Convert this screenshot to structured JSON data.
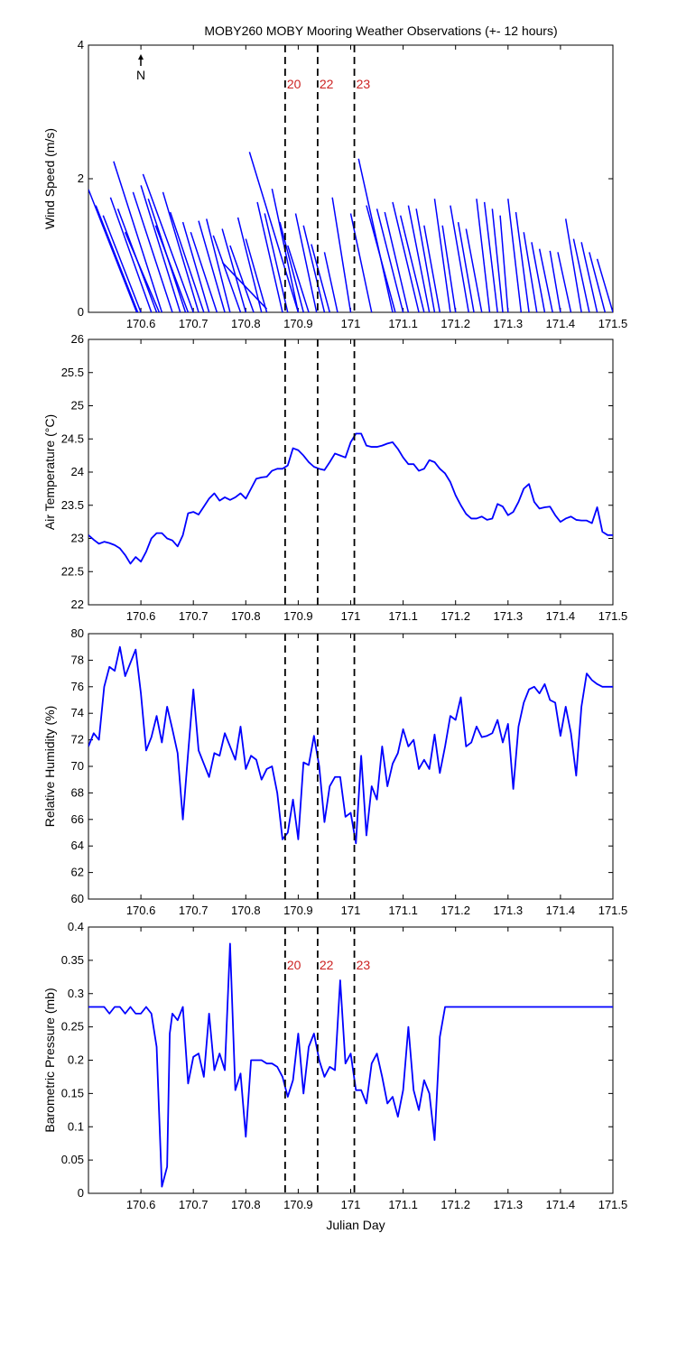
{
  "figure_title": "MOBY260 MOBY Mooring Weather Observations (+- 12 hours)",
  "xlabel_bottom": "Julian Day",
  "north_label": "N",
  "event_labels": [
    "20",
    "22",
    "23"
  ],
  "colors": {
    "series": "#0000ff",
    "event_line": "#000000",
    "event_label": "#cc2222",
    "axes": "#000000"
  },
  "chart_data": [
    {
      "id": "wind",
      "type": "line",
      "ylabel": "Wind Speed (m/s)",
      "xlim": [
        170.5,
        171.5
      ],
      "ylim": [
        0,
        4
      ],
      "xticks": [
        170.6,
        170.7,
        170.8,
        170.9,
        171,
        171.1,
        171.2,
        171.3,
        171.4,
        171.5
      ],
      "xtick_labels": [
        "170.6",
        "170.7",
        "170.8",
        "170.9",
        "171",
        "171.1",
        "171.2",
        "171.3",
        "171.4",
        "171.5"
      ],
      "yticks": [
        0,
        2,
        4
      ],
      "ytick_labels": [
        "0",
        "2",
        "4"
      ],
      "event_x": [
        170.875,
        170.937,
        171.007
      ],
      "stick_vectors": [
        [
          170.5,
          1.84,
          170.592,
          0
        ],
        [
          170.514,
          1.6,
          170.594,
          0
        ],
        [
          170.528,
          1.45,
          170.6,
          0
        ],
        [
          170.542,
          1.72,
          170.62,
          0
        ],
        [
          170.556,
          1.55,
          170.63,
          0
        ],
        [
          170.57,
          1.2,
          170.635,
          0
        ],
        [
          170.548,
          2.26,
          170.64,
          0
        ],
        [
          170.585,
          1.8,
          170.66,
          0
        ],
        [
          170.6,
          1.9,
          170.675,
          0
        ],
        [
          170.614,
          1.7,
          170.685,
          0
        ],
        [
          170.628,
          1.3,
          170.69,
          0
        ],
        [
          170.604,
          2.07,
          170.7,
          0
        ],
        [
          170.642,
          1.8,
          170.71,
          0
        ],
        [
          170.656,
          1.5,
          170.72,
          0
        ],
        [
          170.68,
          1.35,
          170.73,
          0
        ],
        [
          170.695,
          1.2,
          170.745,
          0
        ],
        [
          170.71,
          1.37,
          170.76,
          0
        ],
        [
          170.725,
          1.4,
          170.77,
          0
        ],
        [
          170.738,
          1.15,
          170.79,
          0
        ],
        [
          170.755,
          1.25,
          170.8,
          0
        ],
        [
          170.77,
          1.0,
          170.815,
          0
        ],
        [
          170.785,
          1.42,
          170.83,
          0
        ],
        [
          170.8,
          1.1,
          170.84,
          0
        ],
        [
          170.755,
          0.75,
          170.84,
          0.05
        ],
        [
          170.822,
          1.65,
          170.87,
          0
        ],
        [
          170.836,
          1.48,
          170.88,
          0
        ],
        [
          170.807,
          2.4,
          170.9,
          0
        ],
        [
          170.85,
          1.85,
          170.9,
          0
        ],
        [
          170.865,
          1.35,
          170.91,
          0
        ],
        [
          170.88,
          1.0,
          170.92,
          0
        ],
        [
          170.895,
          1.48,
          170.935,
          0
        ],
        [
          170.91,
          1.3,
          170.95,
          0
        ],
        [
          170.925,
          1.02,
          170.96,
          0
        ],
        [
          170.95,
          0.9,
          170.975,
          0
        ],
        [
          170.965,
          1.72,
          171.0,
          0
        ],
        [
          171.0,
          1.48,
          171.04,
          0
        ],
        [
          171.015,
          2.3,
          171.08,
          0
        ],
        [
          171.03,
          1.6,
          171.085,
          0
        ],
        [
          171.05,
          1.55,
          171.1,
          0
        ],
        [
          171.065,
          1.5,
          171.11,
          0
        ],
        [
          171.08,
          1.65,
          171.13,
          0
        ],
        [
          171.095,
          1.45,
          171.14,
          0
        ],
        [
          171.11,
          1.6,
          171.15,
          0
        ],
        [
          171.125,
          1.55,
          171.16,
          0
        ],
        [
          171.14,
          1.3,
          171.17,
          0
        ],
        [
          171.16,
          1.7,
          171.19,
          0
        ],
        [
          171.175,
          1.3,
          171.2,
          0
        ],
        [
          171.19,
          1.6,
          171.225,
          0
        ],
        [
          171.205,
          1.35,
          171.235,
          0
        ],
        [
          171.22,
          1.25,
          171.25,
          0
        ],
        [
          171.24,
          1.7,
          171.265,
          0
        ],
        [
          171.255,
          1.65,
          171.28,
          0
        ],
        [
          171.27,
          1.55,
          171.29,
          0
        ],
        [
          171.285,
          1.45,
          171.3,
          0
        ],
        [
          171.3,
          1.7,
          171.325,
          0
        ],
        [
          171.315,
          1.5,
          171.34,
          0
        ],
        [
          171.33,
          1.2,
          171.355,
          0
        ],
        [
          171.345,
          1.05,
          171.37,
          0
        ],
        [
          171.36,
          0.95,
          171.385,
          0
        ],
        [
          171.38,
          0.92,
          171.4,
          0
        ],
        [
          171.395,
          0.9,
          171.42,
          0
        ],
        [
          171.41,
          1.4,
          171.44,
          0
        ],
        [
          171.425,
          1.1,
          171.455,
          0
        ],
        [
          171.44,
          1.05,
          171.47,
          0
        ],
        [
          171.455,
          0.9,
          171.485,
          0
        ],
        [
          171.47,
          0.8,
          171.5,
          0
        ]
      ]
    },
    {
      "id": "temp",
      "type": "line",
      "ylabel": "Air Temperature (°C)",
      "xlim": [
        170.5,
        171.5
      ],
      "ylim": [
        22,
        26
      ],
      "xticks": [
        170.6,
        170.7,
        170.8,
        170.9,
        171,
        171.1,
        171.2,
        171.3,
        171.4,
        171.5
      ],
      "xtick_labels": [
        "170.6",
        "170.7",
        "170.8",
        "170.9",
        "171",
        "171.1",
        "171.2",
        "171.3",
        "171.4",
        "171.5"
      ],
      "yticks": [
        22,
        22.5,
        23,
        23.5,
        24,
        24.5,
        25,
        25.5,
        26
      ],
      "ytick_labels": [
        "22",
        "22.5",
        "23",
        "23.5",
        "24",
        "24.5",
        "25",
        "25.5",
        "26"
      ],
      "event_x": [
        170.875,
        170.937,
        171.007
      ],
      "x": [
        170.5,
        170.51,
        170.52,
        170.53,
        170.54,
        170.55,
        170.56,
        170.57,
        170.58,
        170.59,
        170.6,
        170.61,
        170.62,
        170.63,
        170.64,
        170.65,
        170.66,
        170.67,
        170.68,
        170.69,
        170.7,
        170.71,
        170.72,
        170.73,
        170.74,
        170.75,
        170.76,
        170.77,
        170.78,
        170.79,
        170.8,
        170.81,
        170.82,
        170.83,
        170.84,
        170.85,
        170.86,
        170.87,
        170.88,
        170.89,
        170.9,
        170.91,
        170.92,
        170.93,
        170.94,
        170.95,
        170.96,
        170.97,
        170.98,
        170.99,
        171.0,
        171.01,
        171.02,
        171.03,
        171.04,
        171.05,
        171.06,
        171.07,
        171.08,
        171.09,
        171.1,
        171.11,
        171.12,
        171.13,
        171.14,
        171.15,
        171.16,
        171.17,
        171.18,
        171.19,
        171.2,
        171.21,
        171.22,
        171.23,
        171.24,
        171.25,
        171.26,
        171.27,
        171.28,
        171.29,
        171.3,
        171.31,
        171.32,
        171.33,
        171.34,
        171.35,
        171.36,
        171.37,
        171.38,
        171.39,
        171.4,
        171.41,
        171.42,
        171.43,
        171.44,
        171.45,
        171.46,
        171.47,
        171.48,
        171.49,
        171.5
      ],
      "y": [
        23.05,
        22.98,
        22.92,
        22.95,
        22.93,
        22.9,
        22.85,
        22.75,
        22.62,
        22.72,
        22.65,
        22.8,
        23.0,
        23.08,
        23.08,
        23.0,
        22.97,
        22.88,
        23.05,
        23.38,
        23.4,
        23.36,
        23.48,
        23.6,
        23.68,
        23.57,
        23.62,
        23.58,
        23.62,
        23.68,
        23.6,
        23.75,
        23.9,
        23.92,
        23.93,
        24.02,
        24.05,
        24.05,
        24.1,
        24.36,
        24.33,
        24.25,
        24.15,
        24.08,
        24.05,
        24.03,
        24.15,
        24.28,
        24.25,
        24.22,
        24.45,
        24.58,
        24.58,
        24.4,
        24.38,
        24.38,
        24.4,
        24.43,
        24.45,
        24.35,
        24.22,
        24.12,
        24.12,
        24.02,
        24.05,
        24.18,
        24.15,
        24.05,
        23.98,
        23.85,
        23.65,
        23.5,
        23.37,
        23.3,
        23.3,
        23.33,
        23.28,
        23.3,
        23.52,
        23.48,
        23.35,
        23.4,
        23.55,
        23.75,
        23.82,
        23.55,
        23.45,
        23.47,
        23.48,
        23.35,
        23.25,
        23.3,
        23.33,
        23.28,
        23.27,
        23.27,
        23.23,
        23.47,
        23.1,
        23.05,
        23.05
      ]
    },
    {
      "id": "humidity",
      "type": "line",
      "ylabel": "Relative Humidity (%)",
      "xlim": [
        170.5,
        171.5
      ],
      "ylim": [
        60,
        80
      ],
      "xticks": [
        170.6,
        170.7,
        170.8,
        170.9,
        171,
        171.1,
        171.2,
        171.3,
        171.4,
        171.5
      ],
      "xtick_labels": [
        "170.6",
        "170.7",
        "170.8",
        "170.9",
        "171",
        "171.1",
        "171.2",
        "171.3",
        "171.4",
        "171.5"
      ],
      "yticks": [
        60,
        62,
        64,
        66,
        68,
        70,
        72,
        74,
        76,
        78,
        80
      ],
      "ytick_labels": [
        "60",
        "62",
        "64",
        "66",
        "68",
        "70",
        "72",
        "74",
        "76",
        "78",
        "80"
      ],
      "event_x": [
        170.875,
        170.937,
        171.007
      ],
      "x": [
        170.5,
        170.51,
        170.52,
        170.53,
        170.54,
        170.55,
        170.56,
        170.57,
        170.58,
        170.59,
        170.6,
        170.61,
        170.62,
        170.63,
        170.64,
        170.65,
        170.66,
        170.67,
        170.68,
        170.69,
        170.7,
        170.71,
        170.72,
        170.73,
        170.74,
        170.75,
        170.76,
        170.77,
        170.78,
        170.79,
        170.8,
        170.81,
        170.82,
        170.83,
        170.84,
        170.85,
        170.86,
        170.87,
        170.88,
        170.89,
        170.9,
        170.91,
        170.92,
        170.93,
        170.94,
        170.95,
        170.96,
        170.97,
        170.98,
        170.99,
        171.0,
        171.01,
        171.02,
        171.03,
        171.04,
        171.05,
        171.06,
        171.07,
        171.08,
        171.09,
        171.1,
        171.11,
        171.12,
        171.13,
        171.14,
        171.15,
        171.16,
        171.17,
        171.18,
        171.19,
        171.2,
        171.21,
        171.22,
        171.23,
        171.24,
        171.25,
        171.26,
        171.27,
        171.28,
        171.29,
        171.3,
        171.31,
        171.32,
        171.33,
        171.34,
        171.35,
        171.36,
        171.37,
        171.38,
        171.39,
        171.4,
        171.41,
        171.42,
        171.43,
        171.44,
        171.45,
        171.46,
        171.47,
        171.48,
        171.49,
        171.5
      ],
      "y": [
        71.5,
        72.5,
        72.0,
        76.0,
        77.5,
        77.2,
        79.0,
        76.8,
        77.8,
        78.8,
        75.5,
        71.2,
        72.2,
        73.8,
        71.8,
        74.5,
        72.8,
        71.0,
        66.0,
        71.0,
        75.8,
        71.2,
        70.2,
        69.2,
        71.0,
        70.8,
        72.5,
        71.5,
        70.5,
        73.0,
        69.8,
        70.8,
        70.5,
        69.0,
        69.8,
        70.0,
        68.0,
        64.5,
        65.0,
        67.5,
        64.5,
        70.3,
        70.1,
        72.3,
        70.0,
        65.8,
        68.5,
        69.2,
        69.2,
        66.2,
        66.5,
        64.2,
        70.8,
        64.8,
        68.5,
        67.5,
        71.5,
        68.5,
        70.2,
        71.0,
        72.8,
        71.5,
        72.0,
        69.8,
        70.5,
        69.8,
        72.4,
        69.5,
        71.5,
        73.8,
        73.5,
        75.2,
        71.5,
        71.8,
        73.0,
        72.2,
        72.3,
        72.5,
        73.5,
        71.8,
        73.2,
        68.3,
        73.0,
        74.8,
        75.8,
        76.0,
        75.5,
        76.2,
        75.0,
        74.8,
        72.3,
        74.5,
        72.5,
        69.3,
        74.5,
        77.0,
        76.5,
        76.2,
        76.0,
        76.0,
        76.0
      ]
    },
    {
      "id": "pressure",
      "type": "line",
      "ylabel": "Barometric Pressure (mb)",
      "xlabel": "Julian Day",
      "xlim": [
        170.5,
        171.5
      ],
      "ylim": [
        0,
        0.4
      ],
      "xticks": [
        170.6,
        170.7,
        170.8,
        170.9,
        171,
        171.1,
        171.2,
        171.3,
        171.4,
        171.5
      ],
      "xtick_labels": [
        "170.6",
        "170.7",
        "170.8",
        "170.9",
        "171",
        "171.1",
        "171.2",
        "171.3",
        "171.4",
        "171.5"
      ],
      "yticks": [
        0,
        0.05,
        0.1,
        0.15,
        0.2,
        0.25,
        0.3,
        0.35,
        0.4
      ],
      "ytick_labels": [
        "0",
        "0.05",
        "0.1",
        "0.15",
        "0.2",
        "0.25",
        "0.3",
        "0.35",
        "0.4"
      ],
      "event_x": [
        170.875,
        170.937,
        171.007
      ],
      "x": [
        170.5,
        170.51,
        170.52,
        170.53,
        170.54,
        170.55,
        170.56,
        170.57,
        170.58,
        170.59,
        170.6,
        170.61,
        170.62,
        170.63,
        170.64,
        170.65,
        170.655,
        170.66,
        170.67,
        170.68,
        170.69,
        170.7,
        170.71,
        170.72,
        170.73,
        170.74,
        170.75,
        170.76,
        170.77,
        170.78,
        170.79,
        170.8,
        170.81,
        170.82,
        170.83,
        170.84,
        170.85,
        170.86,
        170.87,
        170.88,
        170.89,
        170.9,
        170.91,
        170.92,
        170.93,
        170.94,
        170.95,
        170.96,
        170.97,
        170.98,
        170.99,
        171.0,
        171.01,
        171.02,
        171.03,
        171.04,
        171.05,
        171.06,
        171.07,
        171.08,
        171.09,
        171.1,
        171.11,
        171.12,
        171.13,
        171.14,
        171.15,
        171.16,
        171.17,
        171.18,
        171.19,
        171.2,
        171.21,
        171.22,
        171.3,
        171.4,
        171.5
      ],
      "y": [
        0.28,
        0.28,
        0.28,
        0.28,
        0.27,
        0.28,
        0.28,
        0.27,
        0.28,
        0.27,
        0.27,
        0.28,
        0.27,
        0.22,
        0.01,
        0.04,
        0.24,
        0.27,
        0.26,
        0.28,
        0.165,
        0.205,
        0.21,
        0.175,
        0.27,
        0.185,
        0.21,
        0.185,
        0.375,
        0.155,
        0.18,
        0.085,
        0.2,
        0.2,
        0.2,
        0.195,
        0.195,
        0.19,
        0.175,
        0.145,
        0.17,
        0.24,
        0.15,
        0.22,
        0.24,
        0.2,
        0.175,
        0.19,
        0.185,
        0.32,
        0.195,
        0.21,
        0.155,
        0.155,
        0.135,
        0.195,
        0.21,
        0.175,
        0.135,
        0.145,
        0.115,
        0.155,
        0.25,
        0.155,
        0.125,
        0.17,
        0.15,
        0.08,
        0.235,
        0.28,
        0.28,
        0.28,
        0.28,
        0.28,
        0.28,
        0.28,
        0.28
      ]
    }
  ]
}
